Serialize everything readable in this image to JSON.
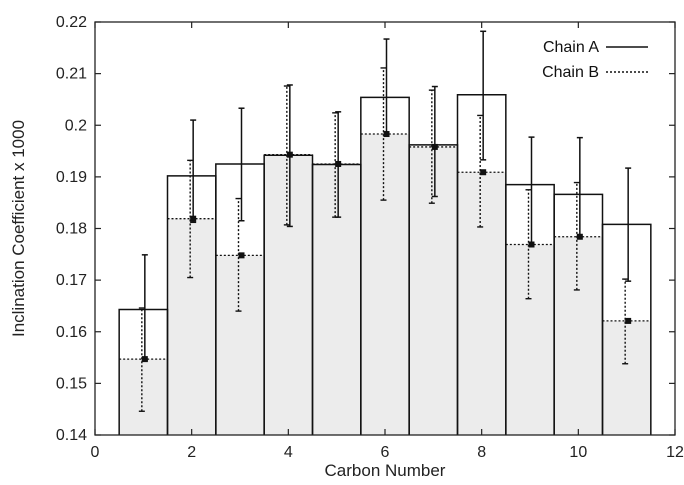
{
  "chart_data": {
    "type": "bar",
    "xlabel": "Carbon Number",
    "ylabel": "Inclination  Coefficient x 1000",
    "xlim": [
      0,
      12
    ],
    "ylim": [
      0.14,
      0.22
    ],
    "xticks": [
      0,
      2,
      4,
      6,
      8,
      10,
      12
    ],
    "yticks": [
      0.14,
      0.15,
      0.16,
      0.17,
      0.18,
      0.19,
      0.2,
      0.21,
      0.22
    ],
    "legend_position": "top-right",
    "categories": [
      1,
      2,
      3,
      4,
      5,
      6,
      7,
      8,
      9,
      10,
      11
    ],
    "series": [
      {
        "name": "Chain A",
        "style": "solid-outline",
        "values": [
          0.1643,
          0.1902,
          0.1925,
          0.1942,
          0.1924,
          0.2054,
          0.1962,
          0.2059,
          0.1885,
          0.1866,
          0.1808
        ],
        "error_low": [
          0.1544,
          0.1812,
          0.1815,
          0.1804,
          0.1822,
          0.198,
          0.1862,
          0.1933,
          0.1767,
          0.1784,
          0.1698
        ],
        "error_high": [
          0.1749,
          0.201,
          0.2033,
          0.2078,
          0.2026,
          0.2167,
          0.2075,
          0.2182,
          0.1977,
          0.1976,
          0.1917
        ]
      },
      {
        "name": "Chain B",
        "style": "dotted-filled",
        "values": [
          0.1547,
          0.1819,
          0.1748,
          0.1943,
          0.1925,
          0.1983,
          0.1958,
          0.1909,
          0.1769,
          0.1784,
          0.1621
        ],
        "error_low": [
          0.1446,
          0.1705,
          0.164,
          0.1807,
          0.1822,
          0.1855,
          0.1849,
          0.1803,
          0.1664,
          0.1681,
          0.1538
        ],
        "error_high": [
          0.1646,
          0.1932,
          0.1858,
          0.2076,
          0.2024,
          0.2111,
          0.2068,
          0.2019,
          0.1875,
          0.1889,
          0.1702
        ]
      }
    ]
  },
  "colors": {
    "fill_b": "#ececec",
    "stroke": "#111111",
    "frame": "#222222"
  }
}
